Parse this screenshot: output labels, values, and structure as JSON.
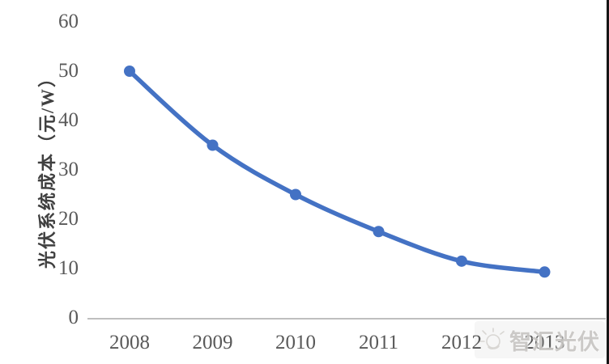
{
  "chart_data": {
    "type": "line",
    "title": "",
    "xlabel": "",
    "ylabel": "光伏系统成本（元/W）",
    "x_labels": [
      "2008",
      "2009",
      "2010",
      "2011",
      "2012",
      "2013"
    ],
    "series": [
      {
        "name": "光伏系统成本",
        "values": [
          50,
          35,
          25,
          17.5,
          11.5,
          9.3
        ],
        "color": "#4472C4",
        "marker": "circle",
        "smooth": true
      }
    ],
    "yticks": [
      0,
      10,
      20,
      30,
      40,
      50,
      60
    ],
    "ylim": [
      0,
      60
    ],
    "grid": false,
    "legend_position": "none",
    "axis_line_color": "#BFBFBF",
    "tick_text_color": "#595959"
  },
  "watermark": {
    "text": "智汇光伏",
    "icon": "sun-logo"
  }
}
